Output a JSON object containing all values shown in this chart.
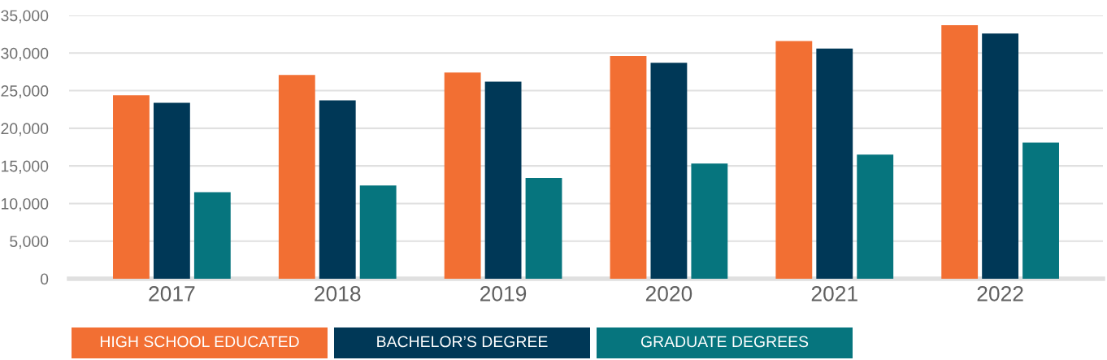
{
  "chart_data": {
    "type": "bar",
    "categories": [
      "2017",
      "2018",
      "2019",
      "2020",
      "2021",
      "2022"
    ],
    "series": [
      {
        "name": "HIGH SCHOOL EDUCATED",
        "color": "#f26f33",
        "values": [
          24400,
          27100,
          27400,
          29600,
          31600,
          33700
        ]
      },
      {
        "name": "BACHELOR’S DEGREE",
        "color": "#003857",
        "values": [
          23400,
          23700,
          26200,
          28700,
          30600,
          32600
        ]
      },
      {
        "name": "GRADUATE DEGREES",
        "color": "#06757e",
        "values": [
          11500,
          12400,
          13400,
          15300,
          16500,
          18100
        ]
      }
    ],
    "ylim": [
      0,
      35000
    ],
    "yticks": [
      {
        "value": 0,
        "label": "0"
      },
      {
        "value": 5000,
        "label": "5,000"
      },
      {
        "value": 10000,
        "label": "10,000"
      },
      {
        "value": 15000,
        "label": "15,000"
      },
      {
        "value": 20000,
        "label": "20,000"
      },
      {
        "value": 25000,
        "label": "25,000"
      },
      {
        "value": 30000,
        "label": "30,000"
      },
      {
        "value": 35000,
        "label": "35,000"
      }
    ],
    "grid": "y",
    "legend": "bottom"
  }
}
